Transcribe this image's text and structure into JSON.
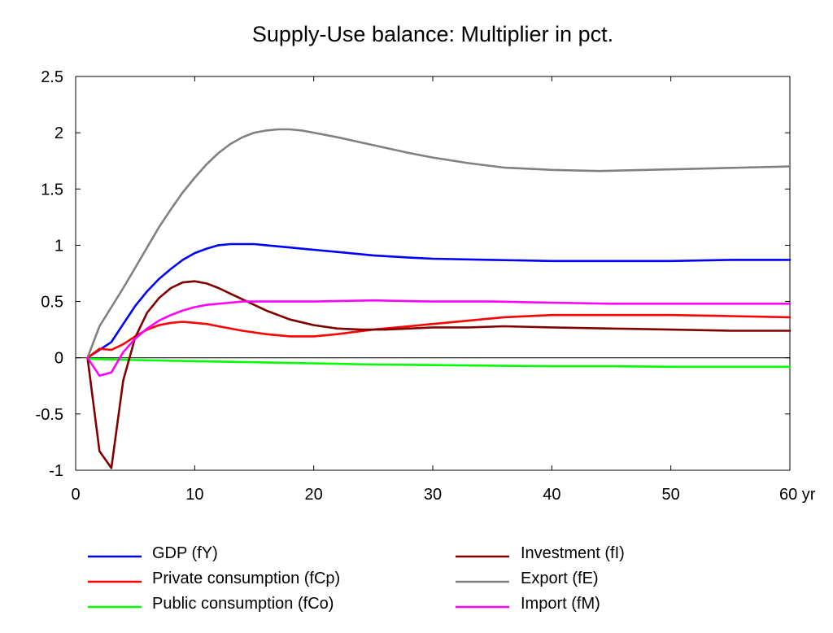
{
  "chart_data": {
    "type": "line",
    "title": "Supply-Use balance: Multiplier in pct.",
    "xlabel": "",
    "ylabel": "",
    "x_unit_label": "yr",
    "xlim": [
      0,
      60
    ],
    "ylim": [
      -1,
      2.5
    ],
    "xticks": [
      0,
      10,
      20,
      30,
      40,
      50,
      60
    ],
    "yticks": [
      -1,
      -0.5,
      0,
      0.5,
      1,
      1.5,
      2,
      2.5
    ],
    "xtick_labels": [
      "0",
      "10",
      "20",
      "30",
      "40",
      "50",
      "60 yr"
    ],
    "ytick_labels": [
      "-1",
      "-0.5",
      "0",
      "0.5",
      "1",
      "1.5",
      "2",
      "2.5"
    ],
    "zero_line": true,
    "grid": false,
    "legend_position": "bottom",
    "series": [
      {
        "name": "GDP (fY)",
        "color": "#0000ff",
        "x": [
          1,
          2,
          3,
          4,
          5,
          6,
          7,
          8,
          9,
          10,
          11,
          12,
          13,
          14,
          15,
          16,
          18,
          20,
          22,
          25,
          28,
          30,
          35,
          40,
          45,
          50,
          55,
          60
        ],
        "y": [
          0,
          0.07,
          0.14,
          0.3,
          0.46,
          0.59,
          0.7,
          0.79,
          0.87,
          0.93,
          0.97,
          1.0,
          1.01,
          1.01,
          1.01,
          1.0,
          0.98,
          0.96,
          0.94,
          0.91,
          0.89,
          0.88,
          0.87,
          0.86,
          0.86,
          0.86,
          0.87,
          0.87
        ]
      },
      {
        "name": "Private consumption (fCp)",
        "color": "#ff0000",
        "x": [
          1,
          2,
          3,
          4,
          5,
          6,
          7,
          8,
          9,
          10,
          11,
          12,
          14,
          16,
          18,
          20,
          22,
          25,
          28,
          30,
          33,
          36,
          40,
          45,
          50,
          55,
          60
        ],
        "y": [
          0,
          0.08,
          0.07,
          0.12,
          0.19,
          0.25,
          0.29,
          0.31,
          0.32,
          0.31,
          0.3,
          0.28,
          0.24,
          0.21,
          0.19,
          0.19,
          0.21,
          0.25,
          0.28,
          0.3,
          0.33,
          0.36,
          0.38,
          0.38,
          0.38,
          0.37,
          0.36
        ]
      },
      {
        "name": "Public consumption (fCo)",
        "color": "#00ff00",
        "x": [
          1,
          5,
          10,
          15,
          20,
          25,
          30,
          35,
          40,
          45,
          50,
          55,
          60
        ],
        "y": [
          -0.01,
          -0.02,
          -0.03,
          -0.04,
          -0.05,
          -0.06,
          -0.065,
          -0.07,
          -0.075,
          -0.075,
          -0.08,
          -0.08,
          -0.08
        ]
      },
      {
        "name": "Investment (fI)",
        "color": "#800000",
        "x": [
          1,
          2,
          3,
          4,
          5,
          6,
          7,
          8,
          9,
          10,
          11,
          12,
          13,
          14,
          15,
          16,
          18,
          20,
          22,
          24,
          26,
          28,
          30,
          33,
          36,
          40,
          45,
          50,
          55,
          60
        ],
        "y": [
          0,
          -0.83,
          -0.98,
          -0.2,
          0.18,
          0.4,
          0.53,
          0.62,
          0.67,
          0.68,
          0.66,
          0.62,
          0.57,
          0.52,
          0.47,
          0.42,
          0.34,
          0.29,
          0.26,
          0.25,
          0.25,
          0.26,
          0.27,
          0.27,
          0.28,
          0.27,
          0.26,
          0.25,
          0.24,
          0.24
        ]
      },
      {
        "name": "Export (fE)",
        "color": "#808080",
        "x": [
          1,
          2,
          3,
          4,
          5,
          6,
          7,
          8,
          9,
          10,
          11,
          12,
          13,
          14,
          15,
          16,
          17,
          18,
          19,
          20,
          22,
          25,
          28,
          30,
          33,
          36,
          40,
          44,
          48,
          52,
          56,
          60
        ],
        "y": [
          0,
          0.28,
          0.45,
          0.62,
          0.8,
          0.98,
          1.16,
          1.32,
          1.47,
          1.6,
          1.72,
          1.82,
          1.9,
          1.96,
          2.0,
          2.02,
          2.03,
          2.03,
          2.02,
          2.0,
          1.96,
          1.89,
          1.82,
          1.78,
          1.73,
          1.69,
          1.67,
          1.66,
          1.67,
          1.68,
          1.69,
          1.7
        ]
      },
      {
        "name": "Import (fM)",
        "color": "#ff00ff",
        "x": [
          1,
          2,
          3,
          4,
          5,
          6,
          7,
          8,
          9,
          10,
          11,
          12,
          13,
          14,
          15,
          16,
          18,
          20,
          25,
          30,
          35,
          40,
          45,
          50,
          55,
          60
        ],
        "y": [
          0,
          -0.16,
          -0.13,
          0.05,
          0.17,
          0.26,
          0.33,
          0.38,
          0.42,
          0.45,
          0.47,
          0.48,
          0.49,
          0.5,
          0.5,
          0.5,
          0.5,
          0.5,
          0.51,
          0.5,
          0.5,
          0.49,
          0.48,
          0.48,
          0.48,
          0.48
        ]
      }
    ]
  }
}
